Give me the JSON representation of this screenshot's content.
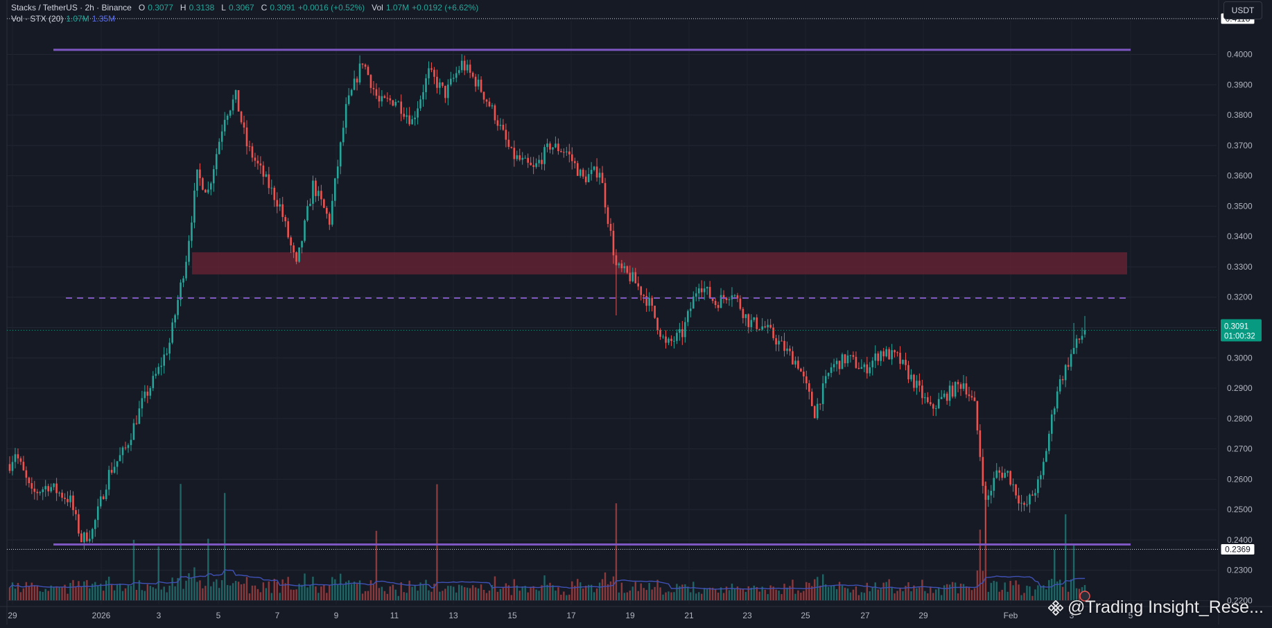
{
  "legend": {
    "symbol": "Stacks / TetherUS · 2h · Binance",
    "o_label": "O",
    "o_value": "0.3077",
    "h_label": "H",
    "h_value": "0.3138",
    "l_label": "L",
    "l_value": "0.3067",
    "c_label": "C",
    "c_value": "0.3091",
    "change": "+0.0016 (+0.52%)",
    "vol_label": "Vol",
    "vol_value": "1.07M",
    "vol_change": "+0.0192 (+6.62%)",
    "vol_indicator": "Vol · STX (20)",
    "vol_current": "1.07M",
    "vol_ma": "1.35M"
  },
  "currency": "USDT",
  "watermark": "@Trading Insight_Rese...",
  "colors": {
    "up": "#26a69a",
    "down": "#ef5350",
    "level_line": "#7e57c2",
    "zone": "#6b2333",
    "volume_ma": "#3f51b5",
    "last_price_badge": "#089981"
  },
  "chart_data": {
    "type": "candlestick",
    "title": "Stacks / TetherUS · 2h · Binance",
    "y_axis": {
      "min": 0.22,
      "max": 0.41,
      "ticks": [
        "0.2200",
        "0.2300",
        "0.2400",
        "0.2500",
        "0.2600",
        "0.2700",
        "0.2800",
        "0.2900",
        "0.3000",
        "0.3100",
        "0.3200",
        "0.3300",
        "0.3400",
        "0.3500",
        "0.3600",
        "0.3700",
        "0.3800",
        "0.3900",
        "0.4000"
      ]
    },
    "x_axis": {
      "ticks": [
        "29",
        "2026",
        "3",
        "5",
        "7",
        "9",
        "11",
        "13",
        "15",
        "17",
        "19",
        "21",
        "23",
        "25",
        "27",
        "29",
        "Feb",
        "3",
        "5"
      ]
    },
    "grid": true,
    "price_badges": [
      {
        "label": "0.4118",
        "value": 0.4118
      },
      {
        "label": "0.2369",
        "value": 0.2369
      }
    ],
    "last_price": {
      "price": "0.3091",
      "countdown": "01:00:32",
      "value": 0.3091
    },
    "resistance_line": 0.4015,
    "support_line": 0.2385,
    "dashed_level": 0.3197,
    "zone": [
      0.3275,
      0.3348
    ],
    "approx_path": [
      [
        0,
        0.265
      ],
      [
        2,
        0.269
      ],
      [
        8,
        0.255
      ],
      [
        14,
        0.258
      ],
      [
        22,
        0.253
      ],
      [
        26,
        0.24
      ],
      [
        30,
        0.243
      ],
      [
        36,
        0.262
      ],
      [
        42,
        0.27
      ],
      [
        48,
        0.285
      ],
      [
        54,
        0.296
      ],
      [
        58,
        0.305
      ],
      [
        64,
        0.333
      ],
      [
        68,
        0.36
      ],
      [
        72,
        0.355
      ],
      [
        78,
        0.38
      ],
      [
        82,
        0.386
      ],
      [
        86,
        0.37
      ],
      [
        92,
        0.36
      ],
      [
        98,
        0.35
      ],
      [
        104,
        0.33
      ],
      [
        110,
        0.357
      ],
      [
        116,
        0.345
      ],
      [
        122,
        0.382
      ],
      [
        128,
        0.398
      ],
      [
        134,
        0.384
      ],
      [
        140,
        0.385
      ],
      [
        146,
        0.378
      ],
      [
        152,
        0.394
      ],
      [
        158,
        0.387
      ],
      [
        164,
        0.397
      ],
      [
        170,
        0.39
      ],
      [
        176,
        0.38
      ],
      [
        182,
        0.367
      ],
      [
        190,
        0.362
      ],
      [
        196,
        0.37
      ],
      [
        202,
        0.368
      ],
      [
        208,
        0.359
      ],
      [
        214,
        0.362
      ],
      [
        220,
        0.33
      ],
      [
        226,
        0.326
      ],
      [
        232,
        0.318
      ],
      [
        238,
        0.304
      ],
      [
        244,
        0.308
      ],
      [
        250,
        0.325
      ],
      [
        256,
        0.318
      ],
      [
        262,
        0.322
      ],
      [
        268,
        0.312
      ],
      [
        274,
        0.31
      ],
      [
        280,
        0.304
      ],
      [
        286,
        0.298
      ],
      [
        292,
        0.282
      ],
      [
        298,
        0.297
      ],
      [
        304,
        0.3
      ],
      [
        310,
        0.296
      ],
      [
        316,
        0.302
      ],
      [
        322,
        0.3
      ],
      [
        328,
        0.292
      ],
      [
        334,
        0.283
      ],
      [
        340,
        0.288
      ],
      [
        346,
        0.292
      ],
      [
        350,
        0.284
      ],
      [
        354,
        0.252
      ],
      [
        358,
        0.262
      ],
      [
        362,
        0.262
      ],
      [
        368,
        0.25
      ],
      [
        374,
        0.26
      ],
      [
        380,
        0.29
      ],
      [
        386,
        0.303
      ],
      [
        390,
        0.309
      ]
    ],
    "volume": {
      "type": "bar",
      "ma_length": 20
    }
  }
}
